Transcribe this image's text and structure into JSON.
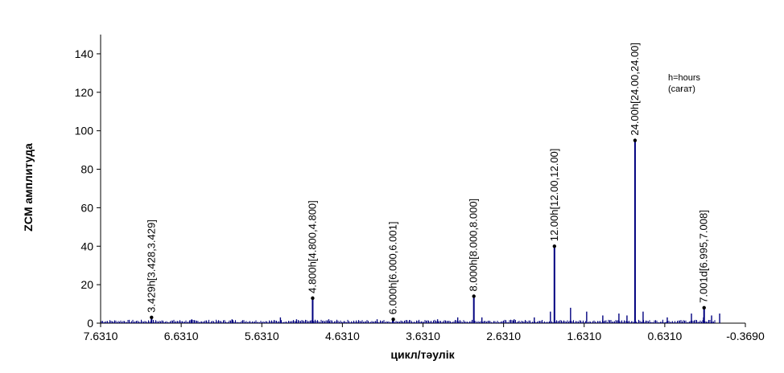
{
  "chart_data": {
    "type": "line",
    "xlabel": "цикл/тәулік",
    "ylabel": "ZCM амплитуда",
    "xlim": [
      7.631,
      -0.369
    ],
    "ylim": [
      0,
      150
    ],
    "x_ticks": [
      "7.6310",
      "6.6310",
      "5.6310",
      "4.6310",
      "3.6310",
      "2.6310",
      "1.6310",
      "0.6310",
      "-0.3690"
    ],
    "y_ticks": [
      0,
      20,
      40,
      60,
      80,
      100,
      120,
      140
    ],
    "note_lines": [
      "h=hours",
      "(сағат)"
    ],
    "series": [
      {
        "color": "#00007f",
        "peaks": [
          {
            "x": 7.0,
            "y": 2
          },
          {
            "x": 6.5,
            "y": 2
          },
          {
            "x": 6.0,
            "y": 2
          },
          {
            "x": 5.4,
            "y": 3
          },
          {
            "x": 5.2,
            "y": 2
          },
          {
            "x": 4.8,
            "y": 2
          },
          {
            "x": 4.2,
            "y": 2
          },
          {
            "x": 3.45,
            "y": 2
          },
          {
            "x": 3.2,
            "y": 3
          },
          {
            "x": 3.0,
            "y": 4
          },
          {
            "x": 2.9,
            "y": 3
          },
          {
            "x": 2.5,
            "y": 2
          },
          {
            "x": 2.25,
            "y": 3
          },
          {
            "x": 2.05,
            "y": 6
          },
          {
            "x": 1.8,
            "y": 8
          },
          {
            "x": 1.6,
            "y": 6
          },
          {
            "x": 1.4,
            "y": 4
          },
          {
            "x": 1.2,
            "y": 5
          },
          {
            "x": 1.1,
            "y": 4
          },
          {
            "x": 0.9,
            "y": 6
          },
          {
            "x": 0.6,
            "y": 3
          },
          {
            "x": 0.3,
            "y": 5
          },
          {
            "x": 0.15,
            "y": 3
          },
          {
            "x": 0.05,
            "y": 4
          },
          {
            "x": -0.05,
            "y": 5
          }
        ]
      }
    ],
    "annotated_peaks": [
      {
        "label": "3.429h[3.428,3.429]",
        "x": 6.999,
        "y": 3
      },
      {
        "label": "4.800h[4.800,4.800]",
        "x": 5.0,
        "y": 13
      },
      {
        "label": "6.000h[6.000,6.001]",
        "x": 4.0,
        "y": 2
      },
      {
        "label": "8.000h[8.000,8.000]",
        "x": 3.0,
        "y": 14
      },
      {
        "label": "12.00h[12.00,12.00]",
        "x": 2.0,
        "y": 40
      },
      {
        "label": "24.00h[24.00,24.00]",
        "x": 1.0,
        "y": 95
      },
      {
        "label": "7.001d[6.995,7.008]",
        "x": 0.143,
        "y": 8
      }
    ]
  }
}
